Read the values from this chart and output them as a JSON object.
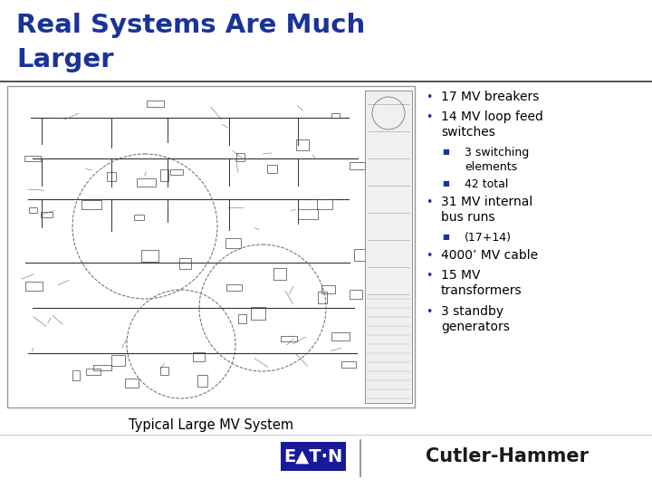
{
  "title_line1": "Real Systems Are Much",
  "title_line2": "Larger",
  "title_color": "#1a3399",
  "background_color": "#ffffff",
  "separator_color": "#333333",
  "bullet_color": "#1a3399",
  "text_color": "#000000",
  "sub_bullet_color": "#1a3399",
  "bullet_items": [
    {
      "level": 1,
      "text": "17 MV breakers"
    },
    {
      "level": 1,
      "text": "14 MV loop feed\nswitches"
    },
    {
      "level": 2,
      "text": "3 switching\nelements"
    },
    {
      "level": 2,
      "text": "42 total"
    },
    {
      "level": 1,
      "text": "31 MV internal\nbus runs"
    },
    {
      "level": 2,
      "text": "(17+14)"
    },
    {
      "level": 1,
      "text": "4000’ MV cable"
    },
    {
      "level": 1,
      "text": "15 MV\ntransformers"
    },
    {
      "level": 1,
      "text": "3 standby\ngenerators"
    }
  ],
  "caption": "Typical Large MV System",
  "image_border_color": "#999999",
  "image_bg_color": "#ffffff",
  "schematic_line_color": "#444444",
  "eaton_bg_color": "#1a1a99",
  "eaton_text_color": "#ffffff",
  "cutler_color": "#1a1a1a",
  "footer_sep_color": "#888888"
}
